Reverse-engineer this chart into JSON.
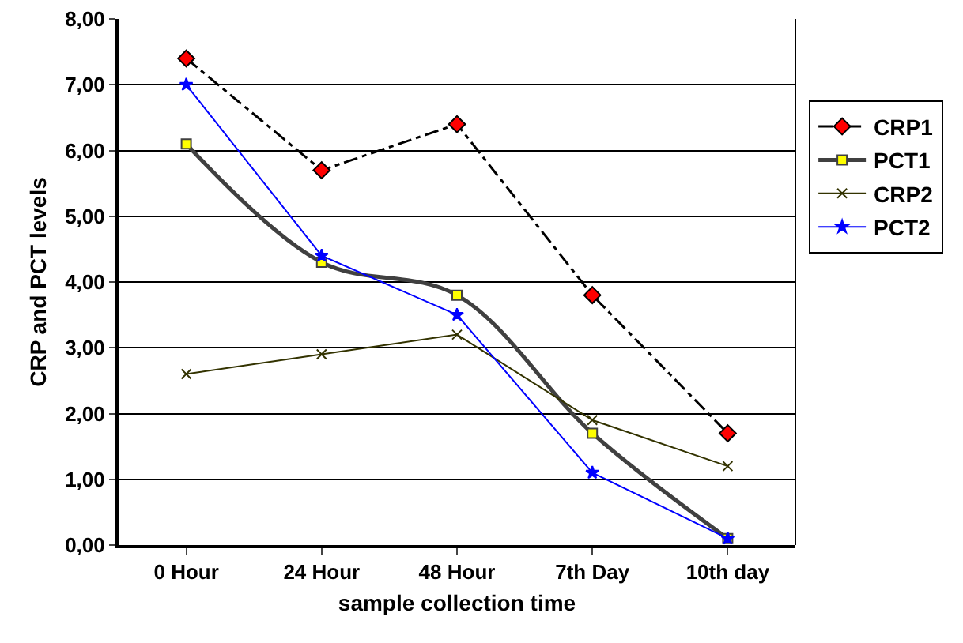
{
  "chart_data": {
    "type": "line",
    "xlabel": "sample collection time",
    "ylabel": "CRP and PCT levels",
    "categories": [
      "0 Hour",
      "24 Hour",
      "48 Hour",
      "7th Day",
      "10th day"
    ],
    "series": [
      {
        "name": "CRP1",
        "color": "#000000",
        "colors": [
          "#ff0000",
          "#ff0000",
          "#ff0000",
          "#ff0000",
          "#ff0000"
        ],
        "marker": "diamond",
        "line_style": "dashed",
        "values": [
          7.4,
          5.7,
          6.4,
          3.8,
          1.7
        ]
      },
      {
        "name": "PCT1",
        "color": "#404040",
        "colors": [
          "#ffff00",
          "#ffff00",
          "#ffff00",
          "#ffff00",
          "#ffff00"
        ],
        "marker": "square",
        "line_style": "solid",
        "values": [
          6.1,
          4.3,
          3.8,
          1.7,
          0.1
        ]
      },
      {
        "name": "CRP2",
        "color": "#333300",
        "marker": "cross",
        "line_style": "solid",
        "values": [
          2.6,
          2.9,
          3.2,
          1.9,
          1.2
        ]
      },
      {
        "name": "PCT2",
        "color": "#0000ff",
        "marker": "star",
        "line_style": "solid",
        "values": [
          7.0,
          4.4,
          3.5,
          1.1,
          0.1
        ]
      }
    ],
    "ylim": [
      0,
      8
    ],
    "yticks": [
      {
        "value": 0,
        "label": "0,00"
      },
      {
        "value": 1,
        "label": "1,00"
      },
      {
        "value": 2,
        "label": "2,00"
      },
      {
        "value": 3,
        "label": "3,00"
      },
      {
        "value": 4,
        "label": "4,00"
      },
      {
        "value": 5,
        "label": "5,00"
      },
      {
        "value": 6,
        "label": "6,00"
      },
      {
        "value": 7,
        "label": "7,00"
      },
      {
        "value": 8,
        "label": "8,00"
      }
    ],
    "grid": "y",
    "legend": "right"
  }
}
